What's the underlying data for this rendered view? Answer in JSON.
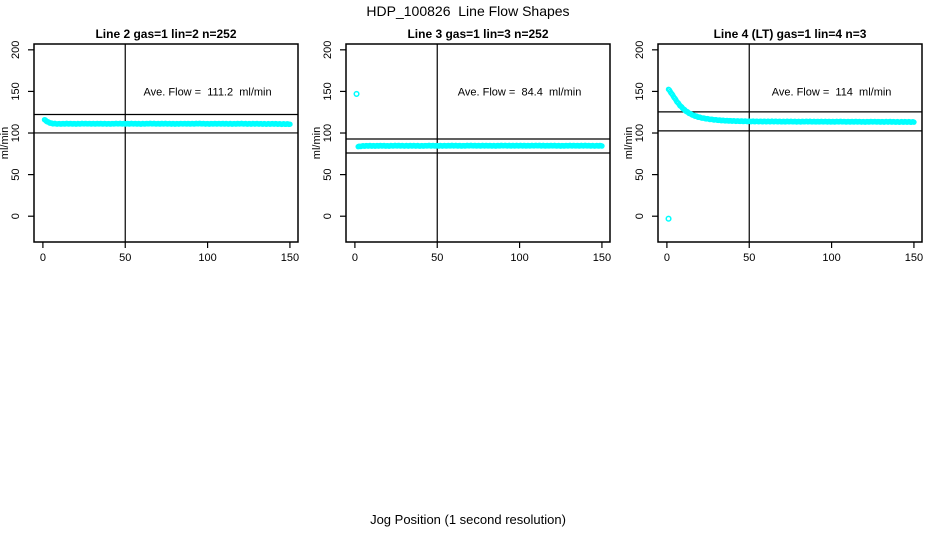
{
  "page": {
    "title": "HDP_100826  Line Flow Shapes",
    "xlabel": "Jog Position (1 second resolution)"
  },
  "colors": {
    "points": "#00FFFF",
    "axis": "#000000",
    "background": "#FFFFFF"
  },
  "axes": {
    "x_ticks": [
      0,
      50,
      100,
      150
    ],
    "y_ticks": [
      0,
      50,
      100,
      150,
      200
    ],
    "ylabel": "ml/min",
    "xlim": [
      -5.4,
      154.9
    ],
    "ylim": [
      -31,
      207
    ],
    "grid": false
  },
  "chart_data": [
    {
      "type": "scatter",
      "title": "Line 2 gas=1 lin=2 n=252",
      "annotation": "Ave. Flow =  111.2  ml/min",
      "annotation_pos": {
        "x": 100,
        "y": 150
      },
      "ave_flow": 111.2,
      "ref_lines": {
        "upper": 122.3,
        "lower": 100.1
      },
      "vline_x": 50,
      "marker": "open-circle",
      "marker_step": 0.6,
      "series_anchors": [
        [
          1,
          116
        ],
        [
          2,
          114.5
        ],
        [
          3,
          113.3
        ],
        [
          4,
          112.4
        ],
        [
          5,
          111.8
        ],
        [
          6,
          111.4
        ],
        [
          8,
          111.1
        ],
        [
          10,
          111.0
        ],
        [
          15,
          111.2
        ],
        [
          20,
          111.0
        ],
        [
          25,
          111.3
        ],
        [
          30,
          111.1
        ],
        [
          35,
          111.2
        ],
        [
          40,
          111.0
        ],
        [
          45,
          111.3
        ],
        [
          50,
          111.1
        ],
        [
          55,
          111.2
        ],
        [
          60,
          111.0
        ],
        [
          65,
          111.3
        ],
        [
          70,
          111.1
        ],
        [
          75,
          111.2
        ],
        [
          80,
          111.0
        ],
        [
          85,
          111.2
        ],
        [
          90,
          111.1
        ],
        [
          95,
          111.3
        ],
        [
          100,
          111.0
        ],
        [
          105,
          111.2
        ],
        [
          110,
          111.1
        ],
        [
          115,
          111.0
        ],
        [
          120,
          111.2
        ],
        [
          125,
          111.0
        ],
        [
          130,
          111.1
        ],
        [
          135,
          110.9
        ],
        [
          140,
          111.0
        ],
        [
          145,
          110.8
        ],
        [
          150,
          110.7
        ]
      ],
      "outliers": []
    },
    {
      "type": "scatter",
      "title": "Line 3 gas=1 lin=3 n=252",
      "annotation": "Ave. Flow =  84.4  ml/min",
      "annotation_pos": {
        "x": 100,
        "y": 150
      },
      "ave_flow": 84.4,
      "ref_lines": {
        "upper": 92.8,
        "lower": 76.0
      },
      "vline_x": 50,
      "marker": "open-circle",
      "marker_step": 0.6,
      "series_anchors": [
        [
          2,
          83.6
        ],
        [
          3,
          84.0
        ],
        [
          5,
          84.4
        ],
        [
          8,
          84.6
        ],
        [
          12,
          84.5
        ],
        [
          16,
          84.7
        ],
        [
          20,
          84.5
        ],
        [
          25,
          84.8
        ],
        [
          30,
          84.6
        ],
        [
          35,
          84.7
        ],
        [
          40,
          84.5
        ],
        [
          45,
          84.8
        ],
        [
          50,
          84.6
        ],
        [
          55,
          84.7
        ],
        [
          60,
          84.8
        ],
        [
          65,
          84.6
        ],
        [
          70,
          84.9
        ],
        [
          75,
          84.7
        ],
        [
          80,
          84.8
        ],
        [
          85,
          84.6
        ],
        [
          90,
          84.9
        ],
        [
          95,
          84.7
        ],
        [
          100,
          84.8
        ],
        [
          105,
          84.7
        ],
        [
          110,
          84.9
        ],
        [
          115,
          84.7
        ],
        [
          120,
          84.8
        ],
        [
          125,
          84.6
        ],
        [
          130,
          84.8
        ],
        [
          135,
          84.7
        ],
        [
          140,
          84.8
        ],
        [
          145,
          84.6
        ],
        [
          150,
          84.7
        ]
      ],
      "outliers": [
        [
          1,
          147
        ]
      ]
    },
    {
      "type": "scatter",
      "title": "Line 4 (LT) gas=1 lin=4 n=3",
      "annotation": "Ave. Flow =  114  ml/min",
      "annotation_pos": {
        "x": 100,
        "y": 150
      },
      "ave_flow": 114,
      "ref_lines": {
        "upper": 125.4,
        "lower": 102.6
      },
      "vline_x": 50,
      "marker": "open-circle",
      "marker_step": 0.6,
      "series_anchors": [
        [
          1,
          152.5
        ],
        [
          2,
          150
        ],
        [
          3,
          147
        ],
        [
          4,
          144
        ],
        [
          5,
          141
        ],
        [
          6,
          138
        ],
        [
          7,
          135.5
        ],
        [
          8,
          133
        ],
        [
          9,
          131
        ],
        [
          10,
          129
        ],
        [
          11,
          127.3
        ],
        [
          12,
          125.8
        ],
        [
          13,
          124.5
        ],
        [
          14,
          123.3
        ],
        [
          15,
          122.3
        ],
        [
          16,
          121.4
        ],
        [
          17,
          120.6
        ],
        [
          18,
          119.9
        ],
        [
          19,
          119.3
        ],
        [
          20,
          118.8
        ],
        [
          22,
          117.9
        ],
        [
          24,
          117.2
        ],
        [
          26,
          116.6
        ],
        [
          28,
          116.1
        ],
        [
          30,
          115.7
        ],
        [
          33,
          115.2
        ],
        [
          36,
          114.8
        ],
        [
          40,
          114.5
        ],
        [
          45,
          114.2
        ],
        [
          50,
          114.0
        ],
        [
          55,
          113.9
        ],
        [
          60,
          113.8
        ],
        [
          65,
          113.9
        ],
        [
          70,
          113.7
        ],
        [
          75,
          113.8
        ],
        [
          80,
          113.6
        ],
        [
          85,
          113.8
        ],
        [
          90,
          113.6
        ],
        [
          95,
          113.7
        ],
        [
          100,
          113.5
        ],
        [
          105,
          113.7
        ],
        [
          110,
          113.5
        ],
        [
          115,
          113.6
        ],
        [
          120,
          113.4
        ],
        [
          125,
          113.6
        ],
        [
          130,
          113.4
        ],
        [
          135,
          113.5
        ],
        [
          140,
          113.3
        ],
        [
          145,
          113.4
        ],
        [
          150,
          113.2
        ]
      ],
      "outliers": [
        [
          1,
          -3
        ]
      ]
    }
  ]
}
